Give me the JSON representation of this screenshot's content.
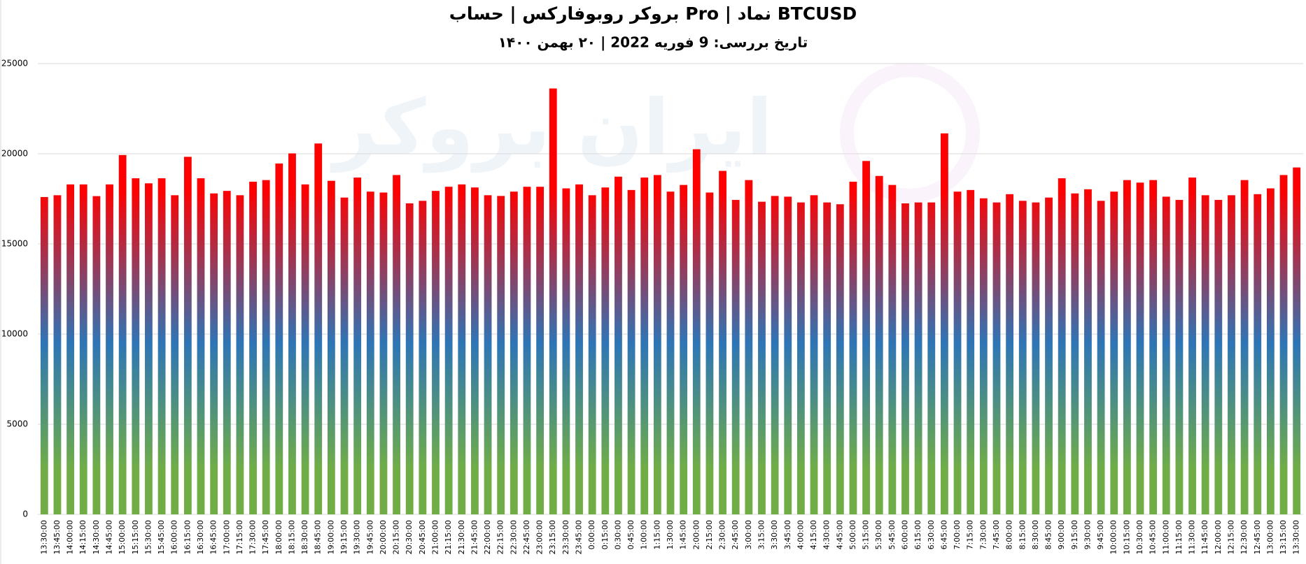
{
  "chart_data": {
    "type": "bar",
    "title": "بروکر روبوفارکس | حساب Pro | نماد BTCUSD",
    "subtitle": "تاریخ بررسی: 9 فوریه 2022 | ۲۰ بهمن ۱۴۰۰",
    "watermark": "ایران بروکر",
    "categories": [
      "13:30:00",
      "13:45:00",
      "14:00:00",
      "14:15:00",
      "14:30:00",
      "14:45:00",
      "15:00:00",
      "15:15:00",
      "15:30:00",
      "15:45:00",
      "16:00:00",
      "16:15:00",
      "16:30:00",
      "16:45:00",
      "17:00:00",
      "17:15:00",
      "17:30:00",
      "17:45:00",
      "18:00:00",
      "18:15:00",
      "18:30:00",
      "18:45:00",
      "19:00:00",
      "19:15:00",
      "19:30:00",
      "19:45:00",
      "20:00:00",
      "20:15:00",
      "20:30:00",
      "20:45:00",
      "21:00:00",
      "21:15:00",
      "21:30:00",
      "21:45:00",
      "22:00:00",
      "22:15:00",
      "22:30:00",
      "22:45:00",
      "23:00:00",
      "23:15:00",
      "23:30:00",
      "23:45:00",
      "0:00:00",
      "0:15:00",
      "0:30:00",
      "0:45:00",
      "1:00:00",
      "1:15:00",
      "1:30:00",
      "1:45:00",
      "2:00:00",
      "2:15:00",
      "2:30:00",
      "2:45:00",
      "3:00:00",
      "3:15:00",
      "3:30:00",
      "3:45:00",
      "4:00:00",
      "4:15:00",
      "4:30:00",
      "4:45:00",
      "5:00:00",
      "5:15:00",
      "5:30:00",
      "5:45:00",
      "6:00:00",
      "6:15:00",
      "6:30:00",
      "6:45:00",
      "7:00:00",
      "7:15:00",
      "7:30:00",
      "7:45:00",
      "8:00:00",
      "8:15:00",
      "8:30:00",
      "8:45:00",
      "9:00:00",
      "9:15:00",
      "9:30:00",
      "9:45:00",
      "10:00:00",
      "10:15:00",
      "10:30:00",
      "10:45:00",
      "11:00:00",
      "11:15:00",
      "11:30:00",
      "11:45:00",
      "12:00:00",
      "12:15:00",
      "12:30:00",
      "12:45:00",
      "13:00:00",
      "13:15:00",
      "13:30:00"
    ],
    "values": [
      17600,
      17700,
      18300,
      18300,
      17650,
      18300,
      19930,
      18640,
      18360,
      18640,
      17700,
      19830,
      18640,
      17800,
      17940,
      17700,
      18450,
      18540,
      19460,
      20020,
      18300,
      20570,
      18500,
      17570,
      18680,
      17900,
      17850,
      18820,
      17250,
      17390,
      17940,
      18170,
      18300,
      18130,
      17700,
      17660,
      17900,
      18170,
      18170,
      23620,
      18080,
      18300,
      17700,
      18130,
      18730,
      17990,
      18680,
      18820,
      17900,
      18270,
      20250,
      17850,
      19050,
      17440,
      18540,
      17340,
      17660,
      17620,
      17300,
      17700,
      17300,
      17200,
      18450,
      19600,
      18770,
      18270,
      17250,
      17300,
      17300,
      21130,
      17900,
      17990,
      17530,
      17300,
      17760,
      17390,
      17300,
      17570,
      18640,
      17800,
      18030,
      17390,
      17900,
      18540,
      18400,
      18540,
      17620,
      17440,
      18680,
      17700,
      17440,
      17700,
      18540,
      17760,
      18080,
      18820,
      19240
    ],
    "gradient": [
      "#70ad47",
      "#2e75b6",
      "#ff0000"
    ],
    "ylim": [
      0,
      25000
    ],
    "yticks": [
      0,
      5000,
      10000,
      15000,
      20000,
      25000
    ],
    "grid": true
  }
}
